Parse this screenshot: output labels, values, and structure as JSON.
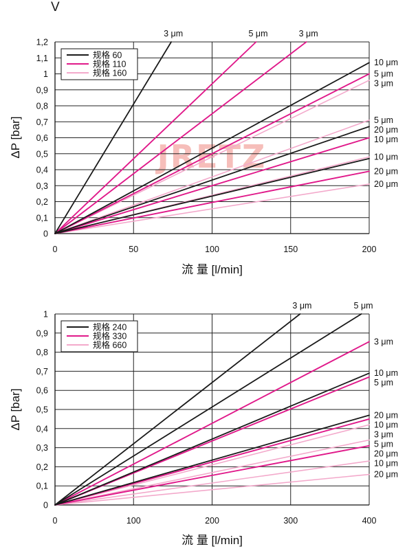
{
  "page": {
    "corner_mark": "V"
  },
  "colors": {
    "black": "#1a1a1a",
    "magenta": "#e0198a",
    "pink": "#f3a9cb",
    "grid": "#222222",
    "watermark": "#f08a82"
  },
  "watermark": "JRETZ",
  "chart_data": [
    {
      "type": "line",
      "xlabel": "流  量 [l/min]",
      "ylabel": "ΔP [bar]",
      "xlim": [
        0,
        200
      ],
      "ylim": [
        0,
        1.2
      ],
      "xticks": [
        "0",
        "50",
        "100",
        "150",
        "200"
      ],
      "yticks": [
        "0",
        "0,1",
        "0,2",
        "0,3",
        "0,4",
        "0,5",
        "0,6",
        "0,7",
        "0,8",
        "0,9",
        "1",
        "1,1",
        "1,2"
      ],
      "grid": true,
      "legend_position": "top-left",
      "legend": [
        {
          "name": "规格  60",
          "color": "black"
        },
        {
          "name": "规格  110",
          "color": "magenta"
        },
        {
          "name": "规格  160",
          "color": "pink"
        }
      ],
      "series": [
        {
          "group": "black",
          "label": "3 μm",
          "end": [
            74,
            1.2
          ]
        },
        {
          "group": "black",
          "label": "10 μm",
          "end": [
            200,
            1.07
          ]
        },
        {
          "group": "black",
          "label": "20 μm",
          "end": [
            200,
            0.67
          ]
        },
        {
          "group": "black",
          "label": "",
          "end": [
            200,
            0.47
          ]
        },
        {
          "group": "magenta",
          "label": "5 μm",
          "end": [
            128,
            1.2
          ]
        },
        {
          "group": "magenta",
          "label": "3 μm",
          "end": [
            160,
            1.2
          ]
        },
        {
          "group": "magenta",
          "label": "5 μm",
          "end": [
            200,
            1.0
          ]
        },
        {
          "group": "magenta",
          "label": "10 μm",
          "end": [
            200,
            0.6
          ]
        },
        {
          "group": "magenta",
          "label": "20 μm",
          "end": [
            200,
            0.39
          ]
        },
        {
          "group": "pink",
          "label": "3 μm",
          "end": [
            200,
            0.96
          ]
        },
        {
          "group": "pink",
          "label": "5 μm",
          "end": [
            200,
            0.71
          ]
        },
        {
          "group": "pink",
          "label": "10 μm",
          "end": [
            200,
            0.48
          ]
        },
        {
          "group": "pink",
          "label": "20 μm",
          "end": [
            200,
            0.31
          ]
        }
      ]
    },
    {
      "type": "line",
      "xlabel": "流  量 [l/min]",
      "ylabel": "ΔP [bar]",
      "xlim": [
        0,
        400
      ],
      "ylim": [
        0,
        1
      ],
      "xticks": [
        "0",
        "100",
        "200",
        "300",
        "400"
      ],
      "yticks": [
        "0",
        "0,1",
        "0,2",
        "0,3",
        "0,4",
        "0,5",
        "0,6",
        "0,7",
        "0,8",
        "0,9",
        "1"
      ],
      "grid": true,
      "legend_position": "top-left",
      "legend": [
        {
          "name": "规格  240",
          "color": "black"
        },
        {
          "name": "规格  330",
          "color": "magenta"
        },
        {
          "name": "规格  660",
          "color": "pink"
        }
      ],
      "series": [
        {
          "group": "black",
          "label": "3 μm",
          "end": [
            312,
            1.0
          ]
        },
        {
          "group": "black",
          "label": "5 μm",
          "end": [
            390,
            1.0
          ]
        },
        {
          "group": "black",
          "label": "10 μm",
          "end": [
            400,
            0.69
          ]
        },
        {
          "group": "black",
          "label": "20 μm",
          "end": [
            400,
            0.47
          ]
        },
        {
          "group": "magenta",
          "label": "3 μm",
          "end": [
            400,
            0.855
          ]
        },
        {
          "group": "magenta",
          "label": "5 μm",
          "end": [
            400,
            0.67
          ]
        },
        {
          "group": "magenta",
          "label": "10 μm",
          "end": [
            400,
            0.45
          ]
        },
        {
          "group": "magenta",
          "label": "20 μm",
          "end": [
            400,
            0.31
          ]
        },
        {
          "group": "pink",
          "label": "3 μm",
          "end": [
            400,
            0.42
          ]
        },
        {
          "group": "pink",
          "label": "5 μm",
          "end": [
            400,
            0.34
          ]
        },
        {
          "group": "pink",
          "label": "10 μm",
          "end": [
            400,
            0.23
          ]
        },
        {
          "group": "pink",
          "label": "20 μm",
          "end": [
            400,
            0.16
          ]
        }
      ]
    }
  ]
}
